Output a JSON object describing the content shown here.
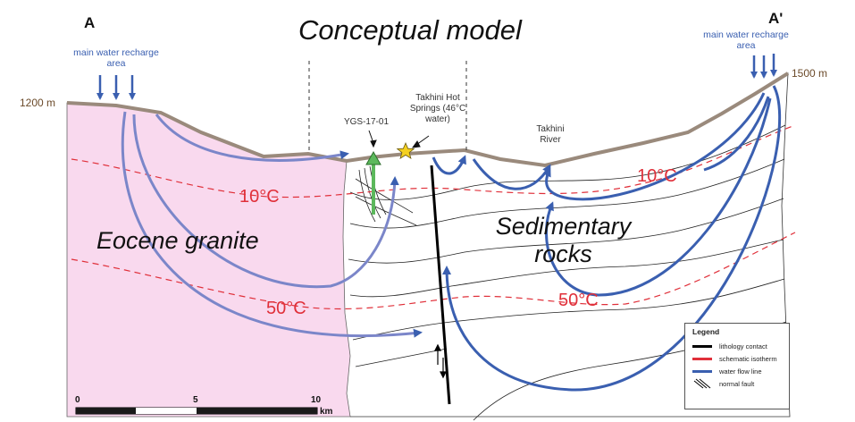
{
  "title": "Conceptual model",
  "section": {
    "start": "A",
    "end": "A'"
  },
  "recharge": {
    "left": "main water recharge area",
    "right": "main water recharge area"
  },
  "elevations": {
    "left": "1200 m",
    "right": "1500 m"
  },
  "sites": {
    "well": "YGS-17-01",
    "springs": "Takhini Hot Springs (46°C water)",
    "river": "Takhini River"
  },
  "isotherms": {
    "shallow": "10°C",
    "deep": "50°C"
  },
  "units": {
    "granite": "Eocene granite",
    "sedimentary": "Sedimentary rocks"
  },
  "legend": {
    "title": "Legend",
    "items": [
      {
        "label": "lithology contact",
        "color": "#000000",
        "icon": "line-icon"
      },
      {
        "label": "schematic isotherm",
        "color": "#e0303a",
        "icon": "line-icon"
      },
      {
        "label": "water flow line",
        "color": "#3a5fb0",
        "icon": "line-icon"
      },
      {
        "label": "normal fault",
        "color": "#000000",
        "icon": "fault-arrows-icon"
      }
    ]
  },
  "scale_bar": {
    "ticks": [
      "0",
      "5",
      "10"
    ],
    "unit": "km"
  },
  "colors": {
    "granite": "#f9d9ee",
    "flow": "#3a5fb0",
    "isotherm": "#e0303a",
    "topography": "#9a8a7c",
    "well": "#5cb85c",
    "spring": "#f4d020"
  }
}
